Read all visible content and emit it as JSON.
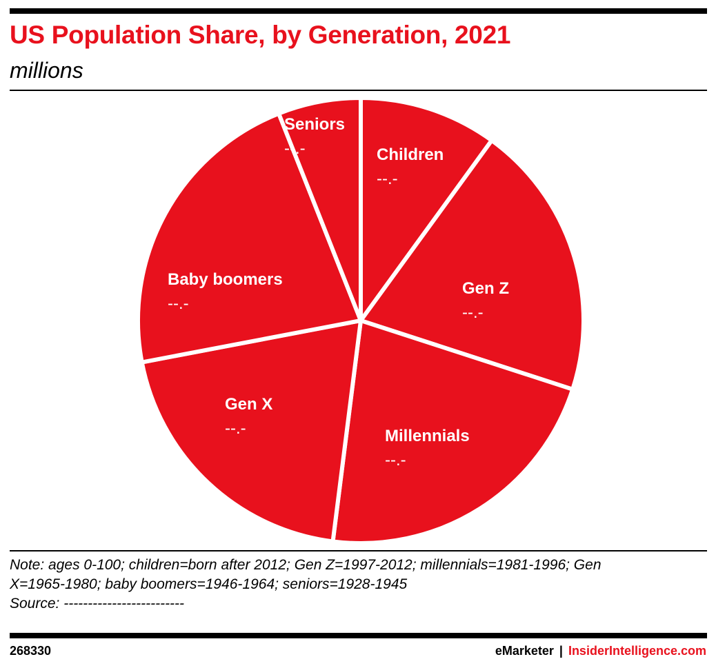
{
  "header": {
    "title": "US Population Share, by Generation, 2021",
    "subtitle": "millions"
  },
  "colors": {
    "accent": "#e8111d",
    "slice": "#e8111d",
    "slice_border": "#ffffff",
    "text": "#000000"
  },
  "chart_data": {
    "type": "pie",
    "title": "US Population Share, by Generation, 2021",
    "subtitle": "millions",
    "slices": [
      {
        "label": "Children",
        "value_label": "--.-",
        "share": 0.1
      },
      {
        "label": "Gen Z",
        "value_label": "--.-",
        "share": 0.2
      },
      {
        "label": "Millennials",
        "value_label": "--.-",
        "share": 0.22
      },
      {
        "label": "Gen X",
        "value_label": "--.-",
        "share": 0.2
      },
      {
        "label": "Baby boomers",
        "value_label": "--.-",
        "share": 0.22
      },
      {
        "label": "Seniors",
        "value_label": "--.-",
        "share": 0.06
      }
    ],
    "legend": "none"
  },
  "footer": {
    "note_line1": "Note: ages 0-100; children=born after 2012; Gen Z=1997-2012; millennials=1981-1996; Gen",
    "note_line2": "X=1965-1980; baby boomers=1946-1964; seniors=1928-1945",
    "source": "Source: -------------------------",
    "chart_id": "268330",
    "brand_left": "eMarketer",
    "brand_sep": "|",
    "brand_right": "InsiderIntelligence.com"
  }
}
